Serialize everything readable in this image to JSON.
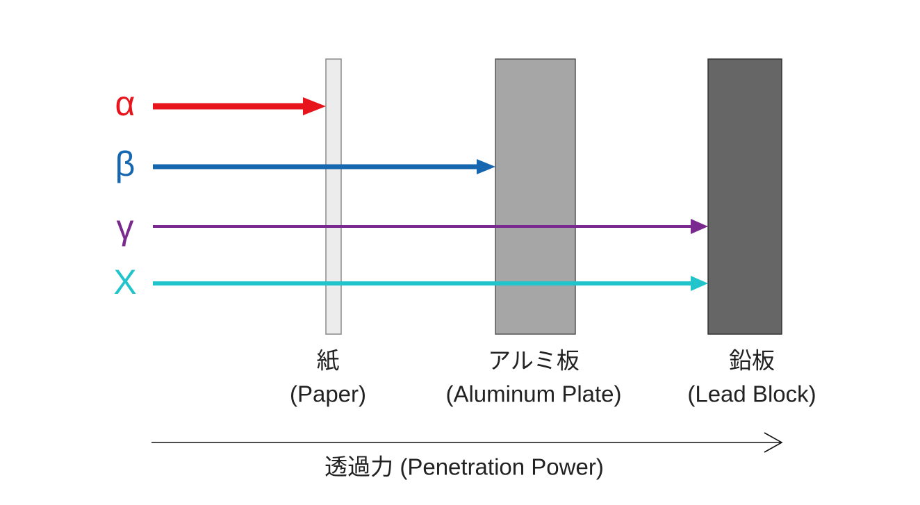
{
  "rays": [
    {
      "symbol": "α"
    },
    {
      "symbol": "β"
    },
    {
      "symbol": "γ"
    },
    {
      "symbol": "X"
    }
  ],
  "barriers": [
    {
      "name": "紙",
      "english": "(Paper)"
    },
    {
      "name": "アルミ板",
      "english": "(Aluminum Plate)"
    },
    {
      "name": "鉛板",
      "english": "(Lead Block)"
    }
  ],
  "axis_label": "透過力 (Penetration Power)"
}
